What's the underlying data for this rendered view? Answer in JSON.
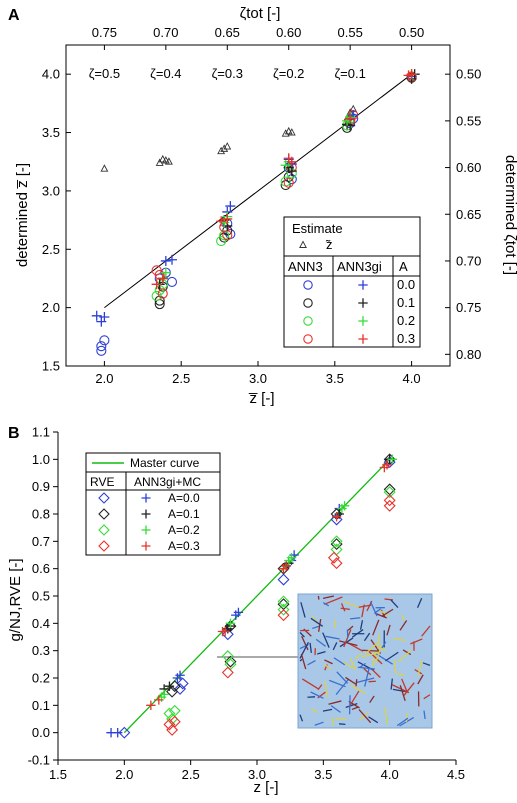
{
  "chart_data": [
    {
      "panel": "A",
      "type": "scatter",
      "xlabel": "z̅ [-]",
      "ylabel": "determined z̅ [-]",
      "top_axis_label": "ζtot [-]",
      "right_axis_label": "determined ζtot [-]",
      "xlim": [
        1.75,
        4.25
      ],
      "ylim": [
        1.5,
        4.25
      ],
      "x_ticks": [
        "2.0",
        "2.5",
        "3.0",
        "3.5",
        "4.0"
      ],
      "y_ticks": [
        "1.5",
        "2.0",
        "2.5",
        "3.0",
        "3.5",
        "4.0"
      ],
      "top_ticks": [
        "0.75",
        "0.70",
        "0.65",
        "0.60",
        "0.55",
        "0.50"
      ],
      "right_ticks": [
        "0.50",
        "0.55",
        "0.60",
        "0.65",
        "0.70",
        "0.75",
        "0.80"
      ],
      "zeta_labels": [
        "ζ=0.5",
        "ζ=0.4",
        "ζ=0.3",
        "ζ=0.2",
        "ζ=0.1"
      ],
      "identity_line": [
        [
          2.0,
          2.0
        ],
        [
          4.0,
          4.0
        ]
      ],
      "legend": {
        "title": "Estimate",
        "estimate_symbol": "̃z",
        "col1": "ANN3",
        "col2": "ANN3gi",
        "col3": "A",
        "rows": [
          "0.0",
          "0.1",
          "0.2",
          "0.3"
        ]
      },
      "colors": [
        "#2c3fd6",
        "#222222",
        "#33dd33",
        "#e8312a"
      ],
      "series": [
        {
          "name": "Estimate z̃",
          "marker": "triangle",
          "points": [
            [
              2.0,
              3.19
            ],
            [
              2.36,
              3.24
            ],
            [
              2.38,
              3.27
            ],
            [
              2.4,
              3.26
            ],
            [
              2.42,
              3.25
            ],
            [
              2.76,
              3.34
            ],
            [
              2.78,
              3.36
            ],
            [
              2.8,
              3.38
            ],
            [
              3.18,
              3.49
            ],
            [
              3.2,
              3.51
            ],
            [
              3.22,
              3.5
            ],
            [
              3.58,
              3.62
            ],
            [
              3.6,
              3.67
            ],
            [
              3.62,
              3.7
            ],
            [
              3.6,
              3.64
            ]
          ]
        },
        {
          "name": "ANN3 A=0.0",
          "marker": "circle",
          "color_index": 0,
          "points": [
            [
              1.98,
              1.63
            ],
            [
              2.0,
              1.72
            ],
            [
              1.98,
              1.67
            ],
            [
              2.36,
              2.25
            ],
            [
              2.4,
              2.3
            ],
            [
              2.44,
              2.22
            ],
            [
              2.8,
              2.72
            ],
            [
              2.82,
              2.63
            ],
            [
              3.2,
              3.2
            ],
            [
              3.22,
              3.1
            ],
            [
              3.6,
              3.58
            ],
            [
              3.62,
              3.62
            ]
          ]
        },
        {
          "name": "ANN3 A=0.1",
          "marker": "circle",
          "color_index": 1,
          "points": [
            [
              2.36,
              2.06
            ],
            [
              2.36,
              2.03
            ],
            [
              2.38,
              2.18
            ],
            [
              2.78,
              2.6
            ],
            [
              2.8,
              2.66
            ],
            [
              3.18,
              3.05
            ],
            [
              3.2,
              3.12
            ],
            [
              3.58,
              3.54
            ],
            [
              3.6,
              3.6
            ],
            [
              4.0,
              3.97
            ]
          ]
        },
        {
          "name": "ANN3 A=0.2",
          "marker": "circle",
          "color_index": 2,
          "points": [
            [
              2.34,
              2.1
            ],
            [
              2.36,
              2.15
            ],
            [
              2.38,
              2.2
            ],
            [
              2.76,
              2.57
            ],
            [
              2.78,
              2.62
            ],
            [
              3.18,
              3.08
            ],
            [
              3.22,
              3.15
            ],
            [
              3.58,
              3.56
            ],
            [
              3.6,
              3.62
            ],
            [
              4.0,
              3.98
            ]
          ]
        },
        {
          "name": "ANN3 A=0.3",
          "marker": "circle",
          "color_index": 3,
          "points": [
            [
              2.34,
              2.32
            ],
            [
              2.36,
              2.28
            ],
            [
              2.38,
              2.12
            ],
            [
              2.78,
              2.69
            ],
            [
              2.8,
              2.62
            ],
            [
              3.2,
              3.07
            ],
            [
              3.22,
              3.2
            ],
            [
              3.6,
              3.6
            ],
            [
              3.62,
              3.65
            ],
            [
              4.0,
              3.98
            ]
          ]
        },
        {
          "name": "ANN3gi A=0.0",
          "marker": "plus",
          "color_index": 0,
          "points": [
            [
              1.95,
              1.93
            ],
            [
              2.0,
              1.92
            ],
            [
              1.98,
              1.88
            ],
            [
              2.4,
              2.4
            ],
            [
              2.44,
              2.41
            ],
            [
              2.82,
              2.87
            ],
            [
              2.8,
              2.82
            ],
            [
              3.2,
              3.27
            ],
            [
              3.22,
              3.23
            ],
            [
              3.6,
              3.63
            ],
            [
              3.62,
              3.65
            ],
            [
              4.0,
              3.98
            ]
          ]
        },
        {
          "name": "ANN3gi A=0.1",
          "marker": "plus",
          "color_index": 1,
          "points": [
            [
              2.36,
              2.2
            ],
            [
              2.38,
              2.25
            ],
            [
              2.78,
              2.75
            ],
            [
              2.8,
              2.7
            ],
            [
              3.2,
              3.2
            ],
            [
              3.22,
              3.17
            ],
            [
              3.58,
              3.57
            ],
            [
              3.6,
              3.56
            ],
            [
              4.0,
              3.96
            ],
            [
              4.02,
              4.0
            ]
          ]
        },
        {
          "name": "ANN3gi A=0.2",
          "marker": "plus",
          "color_index": 2,
          "points": [
            [
              2.38,
              2.25
            ],
            [
              2.4,
              2.3
            ],
            [
              2.78,
              2.73
            ],
            [
              2.8,
              2.78
            ],
            [
              3.18,
              3.22
            ],
            [
              3.2,
              3.25
            ],
            [
              3.58,
              3.6
            ],
            [
              3.6,
              3.63
            ],
            [
              4.0,
              4.0
            ]
          ]
        },
        {
          "name": "ANN3gi A=0.3",
          "marker": "plus",
          "color_index": 3,
          "points": [
            [
              2.34,
              2.2
            ],
            [
              2.38,
              2.25
            ],
            [
              2.76,
              2.74
            ],
            [
              2.8,
              2.76
            ],
            [
              3.2,
              3.28
            ],
            [
              3.22,
              3.25
            ],
            [
              3.6,
              3.62
            ],
            [
              4.0,
              4.0
            ],
            [
              3.98,
              3.99
            ]
          ]
        }
      ]
    },
    {
      "panel": "B",
      "type": "scatter",
      "xlabel": "z [-]",
      "ylabel": "g/NJ,RVE [-]",
      "xlim": [
        1.5,
        4.5
      ],
      "ylim": [
        -0.1,
        1.1
      ],
      "x_ticks": [
        "1.5",
        "2.0",
        "2.5",
        "3.0",
        "3.5",
        "4.0",
        "4.5"
      ],
      "y_ticks": [
        "-0.1",
        "0.0",
        "0.1",
        "0.2",
        "0.3",
        "0.4",
        "0.5",
        "0.6",
        "0.7",
        "0.8",
        "0.9",
        "1.0",
        "1.1"
      ],
      "master_curve": [
        [
          2.0,
          0.0
        ],
        [
          4.0,
          1.0
        ]
      ],
      "legend": {
        "master": "Master curve",
        "col1": "RVE",
        "col2": "ANN3gi+MC",
        "rows": [
          "A=0.0",
          "A=0.1",
          "A=0.2",
          "A=0.3"
        ]
      },
      "colors": [
        "#2c3fd6",
        "#222222",
        "#33dd33",
        "#e8312a",
        "#11bb11"
      ],
      "series": [
        {
          "name": "RVE A=0.0",
          "marker": "diamond",
          "color_index": 0,
          "points": [
            [
              2.0,
              0.0
            ],
            [
              2.42,
              0.16
            ],
            [
              2.44,
              0.18
            ],
            [
              2.78,
              0.36
            ],
            [
              3.2,
              0.56
            ],
            [
              3.6,
              0.78
            ],
            [
              4.0,
              0.99
            ]
          ]
        },
        {
          "name": "RVE A=0.1",
          "marker": "diamond",
          "color_index": 1,
          "points": [
            [
              2.36,
              0.15
            ],
            [
              2.38,
              0.17
            ],
            [
              2.8,
              0.39
            ],
            [
              2.8,
              0.26
            ],
            [
              3.2,
              0.6
            ],
            [
              3.2,
              0.47
            ],
            [
              3.6,
              0.8
            ],
            [
              3.6,
              0.69
            ],
            [
              4.0,
              1.0
            ],
            [
              4.0,
              0.89
            ]
          ]
        },
        {
          "name": "RVE A=0.2",
          "marker": "diamond",
          "color_index": 2,
          "points": [
            [
              2.34,
              0.07
            ],
            [
              2.36,
              0.05
            ],
            [
              2.38,
              0.08
            ],
            [
              2.78,
              0.28
            ],
            [
              2.8,
              0.25
            ],
            [
              3.2,
              0.48
            ],
            [
              3.2,
              0.45
            ],
            [
              3.6,
              0.7
            ],
            [
              3.6,
              0.67
            ],
            [
              4.0,
              0.88
            ]
          ]
        },
        {
          "name": "RVE A=0.3",
          "marker": "diamond",
          "color_index": 3,
          "points": [
            [
              2.34,
              0.03
            ],
            [
              2.36,
              0.01
            ],
            [
              2.38,
              0.04
            ],
            [
              2.78,
              0.22
            ],
            [
              3.2,
              0.43
            ],
            [
              3.58,
              0.64
            ],
            [
              3.6,
              0.62
            ],
            [
              4.0,
              0.85
            ],
            [
              4.0,
              0.83
            ]
          ]
        },
        {
          "name": "ANN3gi+MC A=0.0",
          "marker": "plus",
          "color_index": 0,
          "points": [
            [
              1.9,
              0.0
            ],
            [
              1.95,
              0.0
            ],
            [
              2.4,
              0.2
            ],
            [
              2.42,
              0.21
            ],
            [
              2.84,
              0.43
            ],
            [
              2.86,
              0.44
            ],
            [
              3.26,
              0.63
            ],
            [
              3.28,
              0.65
            ],
            [
              3.62,
              0.82
            ],
            [
              4.0,
              1.0
            ]
          ]
        },
        {
          "name": "ANN3gi+MC A=0.1",
          "marker": "plus",
          "color_index": 1,
          "points": [
            [
              2.3,
              0.16
            ],
            [
              2.34,
              0.17
            ],
            [
              2.78,
              0.38
            ],
            [
              2.8,
              0.39
            ],
            [
              3.22,
              0.61
            ],
            [
              3.24,
              0.62
            ],
            [
              3.62,
              0.8
            ],
            [
              4.0,
              1.0
            ]
          ]
        },
        {
          "name": "ANN3gi+MC A=0.2",
          "marker": "plus",
          "color_index": 2,
          "points": [
            [
              2.28,
              0.13
            ],
            [
              2.3,
              0.14
            ],
            [
              2.8,
              0.4
            ],
            [
              3.24,
              0.63
            ],
            [
              3.26,
              0.64
            ],
            [
              3.64,
              0.82
            ],
            [
              3.66,
              0.83
            ],
            [
              4.02,
              1.0
            ]
          ]
        },
        {
          "name": "ANN3gi+MC A=0.3",
          "marker": "plus",
          "color_index": 3,
          "points": [
            [
              2.2,
              0.1
            ],
            [
              2.26,
              0.12
            ],
            [
              2.74,
              0.37
            ],
            [
              2.76,
              0.37
            ],
            [
              3.2,
              0.6
            ],
            [
              3.22,
              0.61
            ],
            [
              3.6,
              0.79
            ],
            [
              3.98,
              0.98
            ],
            [
              3.96,
              0.97
            ]
          ]
        }
      ]
    }
  ],
  "labels": {
    "panel_a": "A",
    "panel_b": "B"
  }
}
